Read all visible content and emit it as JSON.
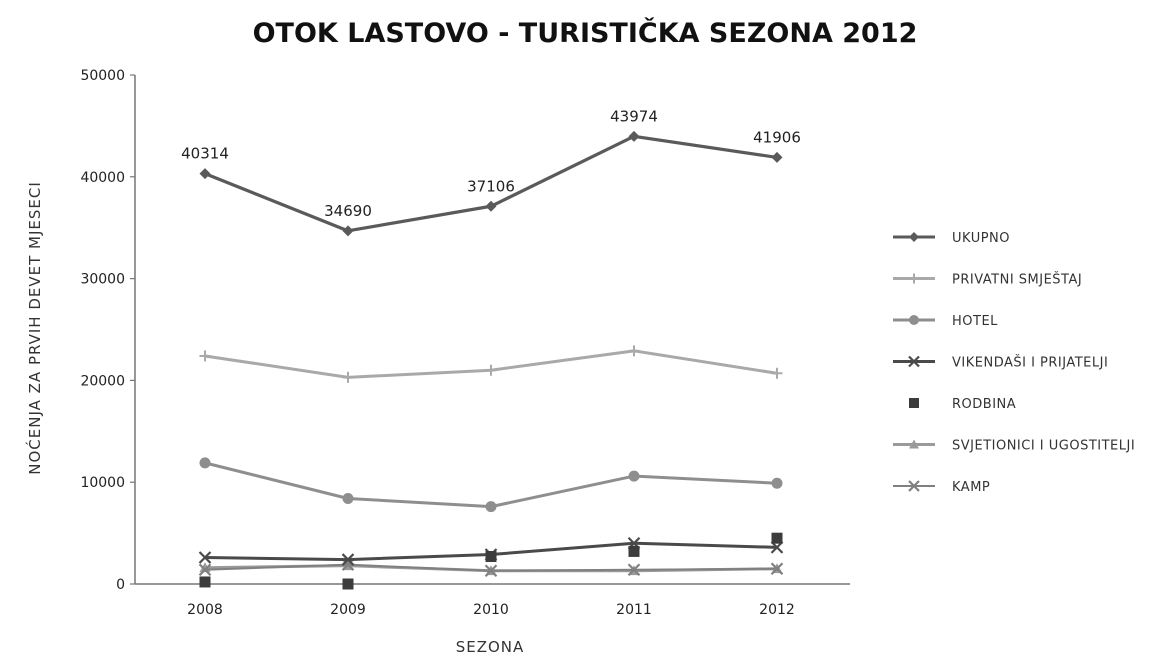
{
  "chart_data": {
    "type": "line",
    "title": "OTOK LASTOVO - TURISTIČKA SEZONA 2012",
    "xlabel": "SEZONA",
    "ylabel": "NOĆENJA ZA PRVIH DEVET MJESECI",
    "categories": [
      "2008",
      "2009",
      "2010",
      "2011",
      "2012"
    ],
    "ylim": [
      0,
      50000
    ],
    "yticks": [
      "0",
      "10000",
      "20000",
      "30000",
      "40000",
      "50000"
    ],
    "grid": false,
    "legend_position": "right",
    "series": [
      {
        "name": "UKUPNO",
        "values": [
          40314,
          34690,
          37106,
          43974,
          41906
        ],
        "color": "#5a5a5a",
        "marker": "diamond",
        "width": 3.2,
        "labels": [
          "40314",
          "34690",
          "37106",
          "43974",
          "41906"
        ]
      },
      {
        "name": "PRIVATNI SMJEŠTAJ",
        "values": [
          22400,
          20300,
          21000,
          22900,
          20700
        ],
        "color": "#a9a9a9",
        "marker": "plus",
        "width": 3
      },
      {
        "name": "HOTEL",
        "values": [
          11900,
          8400,
          7600,
          10600,
          9900
        ],
        "color": "#8e8e8e",
        "marker": "circle",
        "width": 3
      },
      {
        "name": "VIKENDAŠI I PRIJATELJI",
        "values": [
          2600,
          2400,
          2900,
          4000,
          3600
        ],
        "color": "#4a4a4a",
        "marker": "x",
        "width": 3
      },
      {
        "name": "RODBINA",
        "values": [
          200,
          0,
          2700,
          3200,
          4500
        ],
        "color": "#3c3c3c",
        "marker": "square",
        "width": 0
      },
      {
        "name": "SVJETIONICI I UGOSTITELJI",
        "values": [
          1600,
          1800,
          1300,
          1300,
          1500
        ],
        "color": "#9a9a9a",
        "marker": "triangle",
        "width": 3
      },
      {
        "name": "KAMP",
        "values": [
          1400,
          1900,
          1300,
          1400,
          1500
        ],
        "color": "#808080",
        "marker": "x",
        "width": 2
      }
    ]
  }
}
